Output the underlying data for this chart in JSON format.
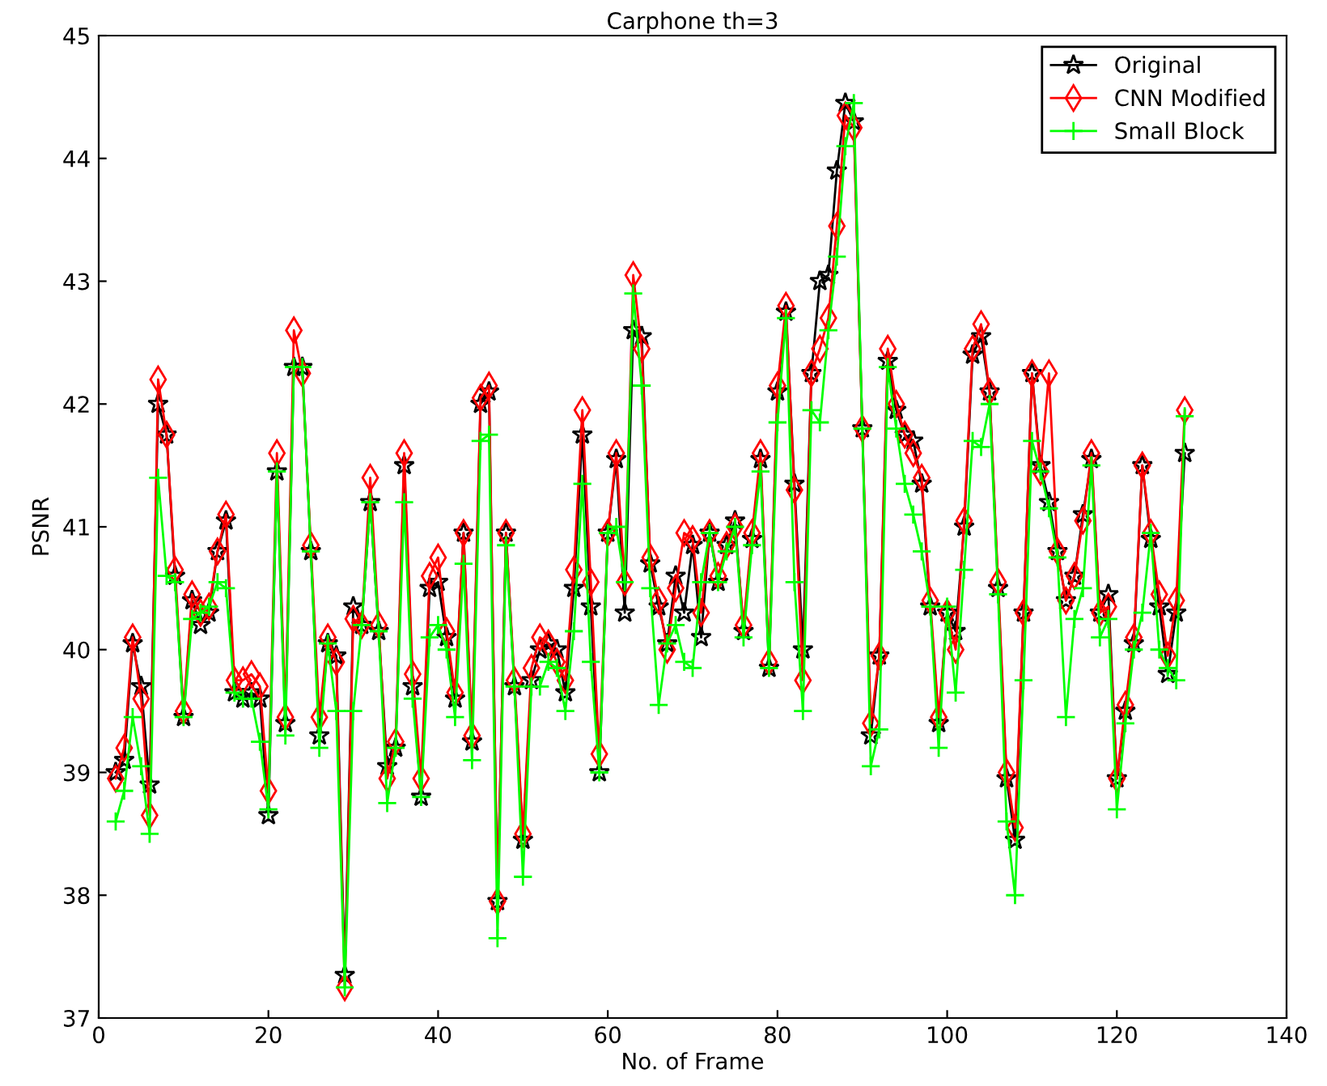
{
  "chart_data": {
    "type": "line",
    "title": "Carphone th=3",
    "xlabel": "No. of Frame",
    "ylabel": "PSNR",
    "x": [
      2,
      3,
      4,
      5,
      6,
      7,
      8,
      9,
      10,
      11,
      12,
      13,
      14,
      15,
      16,
      17,
      18,
      19,
      20,
      21,
      22,
      23,
      24,
      25,
      26,
      27,
      28,
      29,
      30,
      31,
      32,
      33,
      34,
      35,
      36,
      37,
      38,
      39,
      40,
      41,
      42,
      43,
      44,
      45,
      46,
      47,
      48,
      49,
      50,
      51,
      52,
      53,
      54,
      55,
      56,
      57,
      58,
      59,
      60,
      61,
      62,
      63,
      64,
      65,
      66,
      67,
      68,
      69,
      70,
      71,
      72,
      73,
      74,
      75,
      76,
      77,
      78,
      79,
      80,
      81,
      82,
      83,
      84,
      85,
      86,
      87,
      88,
      89,
      90,
      91,
      92,
      93,
      94,
      95,
      96,
      97,
      98,
      99,
      100,
      101,
      102,
      103,
      104,
      105,
      106,
      107,
      108,
      109,
      110,
      111,
      112,
      113,
      114,
      115,
      116,
      117,
      118,
      119,
      120,
      121,
      122,
      123,
      124,
      125,
      126,
      127,
      128
    ],
    "series": [
      {
        "name": "Original",
        "color": "#000000",
        "marker": "star",
        "values": [
          39.0,
          39.1,
          40.05,
          39.7,
          38.9,
          42.0,
          41.75,
          40.6,
          39.45,
          40.4,
          40.2,
          40.3,
          40.8,
          41.05,
          39.65,
          39.6,
          39.65,
          39.6,
          38.65,
          41.45,
          39.4,
          42.3,
          42.3,
          40.8,
          39.3,
          40.05,
          39.95,
          37.35,
          40.35,
          40.2,
          41.2,
          40.15,
          39.05,
          39.2,
          41.5,
          39.7,
          38.8,
          40.5,
          40.55,
          40.1,
          39.6,
          40.95,
          39.25,
          42.0,
          42.1,
          37.95,
          40.95,
          39.7,
          38.45,
          39.75,
          40.0,
          40.05,
          40.0,
          39.65,
          40.5,
          41.75,
          40.35,
          39.0,
          40.95,
          41.55,
          40.3,
          42.6,
          42.55,
          40.7,
          40.35,
          40.05,
          40.6,
          40.3,
          40.85,
          40.1,
          40.95,
          40.55,
          40.85,
          41.05,
          40.15,
          40.9,
          41.55,
          39.85,
          42.1,
          42.75,
          41.35,
          40.0,
          42.25,
          43.0,
          43.05,
          43.9,
          44.45,
          44.3,
          41.8,
          39.3,
          39.95,
          42.35,
          41.95,
          41.75,
          41.7,
          41.35,
          40.35,
          39.4,
          40.3,
          40.15,
          41.0,
          42.4,
          42.55,
          42.1,
          40.5,
          38.95,
          38.45,
          40.3,
          42.25,
          41.5,
          41.2,
          40.8,
          40.4,
          40.6,
          41.1,
          41.55,
          40.3,
          40.45,
          38.95,
          39.5,
          40.05,
          41.5,
          40.9,
          40.35,
          39.8,
          40.3,
          41.6
        ]
      },
      {
        "name": "CNN Modified",
        "color": "#ff0000",
        "marker": "diamond",
        "values": [
          38.95,
          39.2,
          40.1,
          39.6,
          38.65,
          42.2,
          41.75,
          40.65,
          39.5,
          40.45,
          40.3,
          40.35,
          40.8,
          41.1,
          39.75,
          39.75,
          39.8,
          39.7,
          38.85,
          41.6,
          39.45,
          42.6,
          42.25,
          40.85,
          39.45,
          40.1,
          39.9,
          37.25,
          40.25,
          40.2,
          41.4,
          40.2,
          38.95,
          39.25,
          41.6,
          39.8,
          38.95,
          40.6,
          40.75,
          40.15,
          39.65,
          40.95,
          39.3,
          42.05,
          42.15,
          37.95,
          40.95,
          39.75,
          38.5,
          39.85,
          40.1,
          40.05,
          39.9,
          39.75,
          40.65,
          41.95,
          40.55,
          39.15,
          40.95,
          41.6,
          40.55,
          43.05,
          42.45,
          40.75,
          40.4,
          40.0,
          40.5,
          40.95,
          40.9,
          40.3,
          40.95,
          40.6,
          40.85,
          41.0,
          40.2,
          40.95,
          41.6,
          39.9,
          42.15,
          42.8,
          41.3,
          39.75,
          42.25,
          42.45,
          42.7,
          43.45,
          44.35,
          44.25,
          41.8,
          39.4,
          39.95,
          42.45,
          42.0,
          41.75,
          41.6,
          41.4,
          40.4,
          39.45,
          40.3,
          40.0,
          41.05,
          42.45,
          42.65,
          42.1,
          40.55,
          39.0,
          38.55,
          40.3,
          42.25,
          41.45,
          42.25,
          40.8,
          40.4,
          40.6,
          41.05,
          41.6,
          40.3,
          40.35,
          38.95,
          39.55,
          40.1,
          41.5,
          40.95,
          40.45,
          39.95,
          40.4,
          41.95
        ]
      },
      {
        "name": "Small Block",
        "color": "#00ff00",
        "marker": "cross",
        "values": [
          38.6,
          38.85,
          39.45,
          39.05,
          38.5,
          41.4,
          40.6,
          40.55,
          39.45,
          40.25,
          40.3,
          40.35,
          40.55,
          40.5,
          39.65,
          39.6,
          39.6,
          39.25,
          38.7,
          41.45,
          39.3,
          42.3,
          42.3,
          40.8,
          39.2,
          40.05,
          39.5,
          37.25,
          39.5,
          40.2,
          41.2,
          40.15,
          38.75,
          39.2,
          41.2,
          39.6,
          38.8,
          40.1,
          40.2,
          40.0,
          39.45,
          40.7,
          39.1,
          41.7,
          41.75,
          37.65,
          40.85,
          39.7,
          38.15,
          39.7,
          39.7,
          39.9,
          39.85,
          39.5,
          40.15,
          41.35,
          39.9,
          39.0,
          40.95,
          41.0,
          40.55,
          42.9,
          42.15,
          40.5,
          39.55,
          40.05,
          40.2,
          39.9,
          39.85,
          40.55,
          40.95,
          40.55,
          40.8,
          41.0,
          40.1,
          40.85,
          41.45,
          39.85,
          41.85,
          42.7,
          40.55,
          39.5,
          41.95,
          41.85,
          42.6,
          43.2,
          44.1,
          44.45,
          41.8,
          39.05,
          39.35,
          42.3,
          41.8,
          41.35,
          41.1,
          40.8,
          40.35,
          39.2,
          40.35,
          39.65,
          40.65,
          41.7,
          41.65,
          42.0,
          40.45,
          38.6,
          38.0,
          39.75,
          41.7,
          41.45,
          41.15,
          40.75,
          39.45,
          40.25,
          40.5,
          41.5,
          40.1,
          40.25,
          38.7,
          39.4,
          40.0,
          40.3,
          40.95,
          40.0,
          39.85,
          39.75,
          41.9
        ]
      }
    ],
    "xlim": [
      0,
      140
    ],
    "xticks": [
      0,
      20,
      40,
      60,
      80,
      100,
      120,
      140
    ],
    "ylim": [
      37,
      45
    ],
    "yticks": [
      37,
      38,
      39,
      40,
      41,
      42,
      43,
      44,
      45
    ],
    "grid": false,
    "legend": "top right",
    "line_style": "solid"
  }
}
